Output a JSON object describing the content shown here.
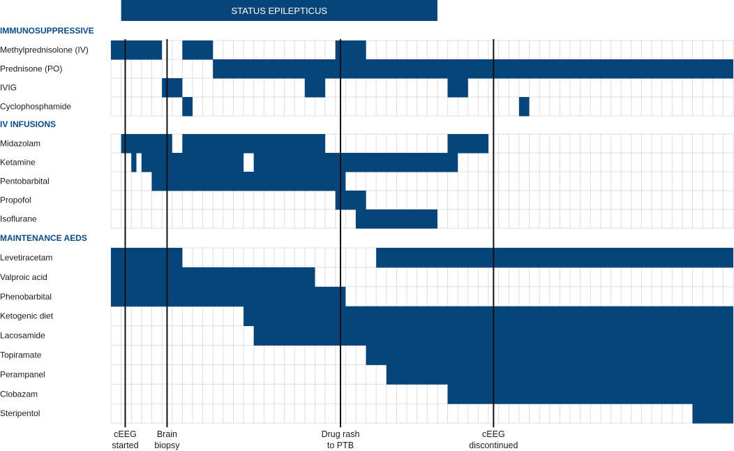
{
  "chart_data": {
    "type": "gantt",
    "columns": 61,
    "color": "#07447a",
    "grid_color": "#dddddd",
    "status_band": {
      "label": "STATUS EPILEPTICUS",
      "range": [
        1,
        32
      ]
    },
    "sections": [
      {
        "title": "IMMUNOSUPPRESSIVE",
        "rows": [
          {
            "name": "Methylprednisolone (IV)",
            "segments": [
              [
                0,
                5
              ],
              [
                7,
                10
              ],
              [
                22,
                25
              ]
            ]
          },
          {
            "name": "Prednisone (PO)",
            "segments": [
              [
                10,
                61
              ]
            ]
          },
          {
            "name": "IVIG",
            "segments": [
              [
                5,
                7
              ],
              [
                19,
                21
              ],
              [
                33,
                35
              ]
            ]
          },
          {
            "name": "Cyclophosphamide",
            "segments": [
              [
                7,
                8
              ],
              [
                40,
                41
              ]
            ]
          }
        ]
      },
      {
        "title": "IV INFUSIONS",
        "rows": [
          {
            "name": "Midazolam",
            "segments": [
              [
                1,
                6
              ],
              [
                7,
                21
              ],
              [
                33,
                37
              ]
            ]
          },
          {
            "name": "Ketamine",
            "segments": [
              [
                2,
                2.5
              ],
              [
                3,
                13
              ],
              [
                14,
                34
              ]
            ]
          },
          {
            "name": "Pentobarbital",
            "segments": [
              [
                4,
                23
              ]
            ]
          },
          {
            "name": "Propofol",
            "segments": [
              [
                22,
                25
              ]
            ]
          },
          {
            "name": "Isoflurane",
            "segments": [
              [
                24,
                32
              ]
            ]
          }
        ]
      },
      {
        "title": "MAINTENANCE AEDS",
        "rows": [
          {
            "name": "Levetiracetam",
            "segments": [
              [
                0,
                7
              ],
              [
                26,
                61
              ]
            ]
          },
          {
            "name": "Valproic acid",
            "segments": [
              [
                0,
                20
              ]
            ]
          },
          {
            "name": "Phenobarbital",
            "segments": [
              [
                0,
                23
              ]
            ]
          },
          {
            "name": "Ketogenic diet",
            "segments": [
              [
                13,
                61
              ]
            ]
          },
          {
            "name": "Lacosamide",
            "segments": [
              [
                14,
                61
              ]
            ]
          },
          {
            "name": "Topiramate",
            "segments": [
              [
                25,
                61
              ]
            ]
          },
          {
            "name": "Perampanel",
            "segments": [
              [
                27,
                61
              ]
            ]
          },
          {
            "name": "Clobazam",
            "segments": [
              [
                33,
                61
              ]
            ]
          },
          {
            "name": "Steripentol",
            "segments": [
              [
                57,
                61
              ]
            ]
          }
        ]
      }
    ],
    "events": [
      {
        "at": 1.4,
        "line1": "cEEG",
        "line2": "started"
      },
      {
        "at": 5.5,
        "line1": "Brain",
        "line2": "biopsy"
      },
      {
        "at": 22.5,
        "line1": "Drug rash",
        "line2": "to PTB"
      },
      {
        "at": 37.5,
        "line1": "cEEG",
        "line2": "discontinued"
      }
    ]
  }
}
